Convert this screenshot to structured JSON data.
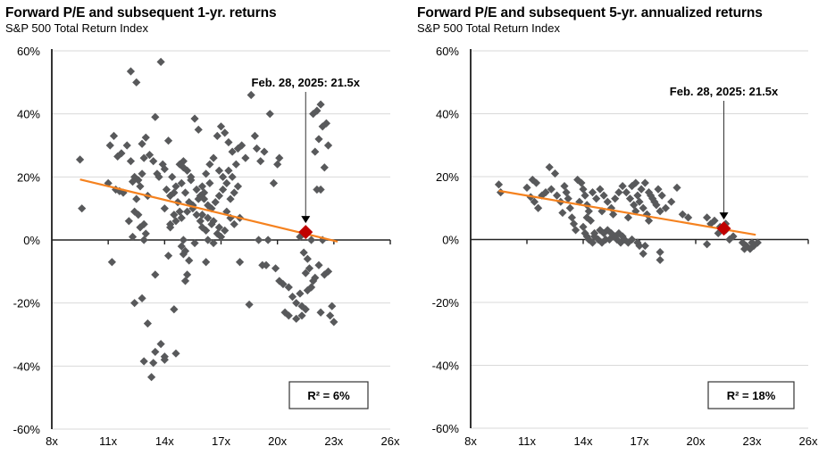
{
  "colors": {
    "point": "#58595b",
    "trend": "#f5821f",
    "current": "#c00000",
    "grid": "#d9d9d9",
    "axis": "#000000"
  },
  "chart_data": [
    {
      "type": "scatter",
      "title": "Forward P/E and subsequent 1-yr. returns",
      "subtitle": "S&P 500 Total Return Index",
      "xlabel": "",
      "ylabel": "",
      "xlim": [
        8,
        26
      ],
      "ylim": [
        -60,
        60
      ],
      "x_ticks": [
        8,
        11,
        14,
        17,
        20,
        23,
        26
      ],
      "x_tick_labels": [
        "8x",
        "11x",
        "14x",
        "17x",
        "20x",
        "23x",
        "26x"
      ],
      "y_ticks": [
        60,
        40,
        20,
        0,
        -20,
        -40,
        -60
      ],
      "y_tick_labels": [
        "60%",
        "40%",
        "20%",
        "0%",
        "-20%",
        "-40%",
        "-60%"
      ],
      "grid": true,
      "annotation": "Feb. 28, 2025:  21.5x",
      "r2_label": "R² = 6%",
      "current": {
        "x": 21.5,
        "y": 2.5
      },
      "trendline": {
        "x": [
          9.5,
          23.2
        ],
        "y": [
          19.2,
          -0.5
        ]
      },
      "points": [
        [
          9.5,
          25.5
        ],
        [
          9.6,
          10
        ],
        [
          11,
          18
        ],
        [
          11.1,
          30
        ],
        [
          11.3,
          33
        ],
        [
          11.5,
          26.5
        ],
        [
          11.4,
          16
        ],
        [
          11.6,
          15.5
        ],
        [
          11.8,
          15
        ],
        [
          11.7,
          27.5
        ],
        [
          11.2,
          -7
        ],
        [
          12.2,
          53.5
        ],
        [
          12.5,
          50
        ],
        [
          12,
          30
        ],
        [
          12.2,
          25
        ],
        [
          12.4,
          20
        ],
        [
          12.3,
          18.5
        ],
        [
          12.6,
          19
        ],
        [
          12.7,
          17
        ],
        [
          12.8,
          30.5
        ],
        [
          12.9,
          26
        ],
        [
          13,
          32.5
        ],
        [
          13.2,
          27
        ],
        [
          12.8,
          21
        ],
        [
          13.1,
          14
        ],
        [
          12.5,
          13
        ],
        [
          12.4,
          9
        ],
        [
          12.6,
          8
        ],
        [
          12.9,
          5
        ],
        [
          12.1,
          6
        ],
        [
          12.3,
          1
        ],
        [
          12.7,
          4
        ],
        [
          13,
          2
        ],
        [
          12.9,
          0
        ],
        [
          12.4,
          -20
        ],
        [
          12.8,
          -18.5
        ],
        [
          13.1,
          -26.5
        ],
        [
          12.9,
          -38.5
        ],
        [
          13.4,
          -39
        ],
        [
          13.3,
          -43.5
        ],
        [
          13.5,
          -35.5
        ],
        [
          13.8,
          -33
        ],
        [
          14,
          -37
        ],
        [
          14,
          -38
        ],
        [
          14.6,
          -36
        ],
        [
          14.5,
          -22
        ],
        [
          13.5,
          -11
        ],
        [
          14.2,
          -5
        ],
        [
          14.9,
          -2
        ],
        [
          15,
          -4.5
        ],
        [
          15.1,
          -3.5
        ],
        [
          15.3,
          -6.5
        ],
        [
          15.2,
          -11
        ],
        [
          15.1,
          -13
        ],
        [
          16.2,
          -7
        ],
        [
          13.5,
          39
        ],
        [
          13.4,
          25
        ],
        [
          13.8,
          56.5
        ],
        [
          13.6,
          21
        ],
        [
          13.9,
          24
        ],
        [
          14,
          22.5
        ],
        [
          13.7,
          20
        ],
        [
          14.1,
          16
        ],
        [
          14.3,
          14
        ],
        [
          14.5,
          15
        ],
        [
          14.7,
          12
        ],
        [
          14.2,
          31.5
        ],
        [
          14.4,
          20
        ],
        [
          14.6,
          17
        ],
        [
          14.9,
          18
        ],
        [
          15,
          25
        ],
        [
          15.2,
          22
        ],
        [
          15.4,
          20
        ],
        [
          15.6,
          38.5
        ],
        [
          15.8,
          35
        ],
        [
          15.1,
          15
        ],
        [
          15.3,
          12
        ],
        [
          15.5,
          10
        ],
        [
          15.7,
          8
        ],
        [
          15.9,
          6
        ],
        [
          16,
          4
        ],
        [
          16.2,
          3
        ],
        [
          16.5,
          5
        ],
        [
          16.8,
          2
        ],
        [
          17,
          1
        ],
        [
          15,
          0
        ],
        [
          15.6,
          -1
        ],
        [
          16.3,
          0
        ],
        [
          16.6,
          -1
        ],
        [
          14.8,
          9
        ],
        [
          14.5,
          8
        ],
        [
          14.3,
          5
        ],
        [
          14,
          10
        ],
        [
          14.8,
          24
        ],
        [
          15,
          23
        ],
        [
          15.4,
          19
        ],
        [
          15.7,
          16
        ],
        [
          15.9,
          14
        ],
        [
          16.1,
          13
        ],
        [
          16.3,
          11
        ],
        [
          16.5,
          10
        ],
        [
          16.7,
          12
        ],
        [
          16.9,
          14
        ],
        [
          17.1,
          16
        ],
        [
          17.3,
          9
        ],
        [
          17.5,
          7
        ],
        [
          17.7,
          5
        ],
        [
          16,
          17
        ],
        [
          16.2,
          21
        ],
        [
          16.4,
          24
        ],
        [
          16.6,
          26
        ],
        [
          16.8,
          33
        ],
        [
          17,
          36
        ],
        [
          17.2,
          34
        ],
        [
          17.4,
          31
        ],
        [
          17.6,
          28
        ],
        [
          17.8,
          24
        ],
        [
          17.3,
          18
        ],
        [
          17.1,
          20
        ],
        [
          16.9,
          22
        ],
        [
          16.4,
          18
        ],
        [
          16.1,
          15
        ],
        [
          15.8,
          13
        ],
        [
          15.5,
          11
        ],
        [
          15.2,
          9
        ],
        [
          14.9,
          7
        ],
        [
          14.6,
          6
        ],
        [
          14.3,
          4
        ],
        [
          16,
          8
        ],
        [
          16.3,
          7
        ],
        [
          16.6,
          6
        ],
        [
          16.9,
          4
        ],
        [
          17.2,
          3
        ],
        [
          17.5,
          13
        ],
        [
          17.7,
          15
        ],
        [
          17.9,
          17
        ],
        [
          18,
          7
        ],
        [
          17.6,
          20
        ],
        [
          17.4,
          22
        ],
        [
          17.9,
          29
        ],
        [
          18.1,
          30
        ],
        [
          18.3,
          26
        ],
        [
          18.6,
          46
        ],
        [
          18.8,
          33
        ],
        [
          18.9,
          29
        ],
        [
          19.1,
          25
        ],
        [
          19.3,
          28
        ],
        [
          19.6,
          40
        ],
        [
          19.8,
          18
        ],
        [
          20,
          24
        ],
        [
          20.1,
          26
        ],
        [
          19.5,
          0
        ],
        [
          18.5,
          -20.5
        ],
        [
          18,
          -7
        ],
        [
          19,
          0
        ],
        [
          19.2,
          -8
        ],
        [
          19.4,
          -8
        ],
        [
          19.9,
          -9
        ],
        [
          20.1,
          -13
        ],
        [
          20.3,
          -14
        ],
        [
          20.4,
          -23
        ],
        [
          20.6,
          -15
        ],
        [
          20.8,
          -18
        ],
        [
          21,
          -20
        ],
        [
          21.2,
          -17
        ],
        [
          21.3,
          -21
        ],
        [
          21.5,
          -22
        ],
        [
          21.6,
          -16
        ],
        [
          21.8,
          -15
        ],
        [
          22,
          -12
        ],
        [
          21.9,
          -13
        ],
        [
          21.7,
          -9
        ],
        [
          21.6,
          -6
        ],
        [
          21.4,
          -4
        ],
        [
          21.5,
          -10.5
        ],
        [
          22.2,
          -8
        ],
        [
          22.5,
          -11
        ],
        [
          22.7,
          -10
        ],
        [
          22.3,
          -23
        ],
        [
          22.8,
          -24
        ],
        [
          22.9,
          -21
        ],
        [
          23,
          -26
        ],
        [
          21.2,
          1
        ],
        [
          21.8,
          0
        ],
        [
          22.4,
          0
        ],
        [
          22.1,
          16
        ],
        [
          22.3,
          16
        ],
        [
          22.5,
          23
        ],
        [
          22.7,
          30
        ],
        [
          22,
          28
        ],
        [
          22.2,
          32
        ],
        [
          22.4,
          36
        ],
        [
          22.6,
          37
        ],
        [
          21.9,
          40
        ],
        [
          22.1,
          41
        ],
        [
          22.3,
          43
        ],
        [
          20.6,
          -24
        ],
        [
          21,
          -25
        ],
        [
          21.3,
          -24
        ]
      ]
    },
    {
      "type": "scatter",
      "title": "Forward P/E and subsequent 5-yr. annualized returns",
      "subtitle": "S&P 500 Total Return Index",
      "xlabel": "",
      "ylabel": "",
      "xlim": [
        8,
        26
      ],
      "ylim": [
        -60,
        60
      ],
      "x_ticks": [
        8,
        11,
        14,
        17,
        20,
        23,
        26
      ],
      "x_tick_labels": [
        "8x",
        "11x",
        "14x",
        "17x",
        "20x",
        "23x",
        "26x"
      ],
      "y_ticks": [
        60,
        40,
        20,
        0,
        -20,
        -40,
        -60
      ],
      "y_tick_labels": [
        "60%",
        "40%",
        "20%",
        "0%",
        "-20%",
        "-40%",
        "-60%"
      ],
      "grid": true,
      "annotation": "Feb. 28, 2025:  21.5x",
      "r2_label": "R² = 18%",
      "current": {
        "x": 21.5,
        "y": 3.5
      },
      "trendline": {
        "x": [
          9.5,
          23.2
        ],
        "y": [
          15.5,
          1.5
        ]
      },
      "points": [
        [
          9.5,
          17.5
        ],
        [
          9.6,
          15
        ],
        [
          11,
          16.5
        ],
        [
          11.3,
          19
        ],
        [
          11.5,
          18
        ],
        [
          11.2,
          13.5
        ],
        [
          11.4,
          12
        ],
        [
          11.6,
          10
        ],
        [
          11.8,
          14
        ],
        [
          12,
          15
        ],
        [
          12.2,
          23
        ],
        [
          12.5,
          21
        ],
        [
          12.3,
          16
        ],
        [
          12.6,
          14
        ],
        [
          12.8,
          12
        ],
        [
          12.9,
          8.5
        ],
        [
          13,
          17
        ],
        [
          13.1,
          15
        ],
        [
          13.2,
          13
        ],
        [
          13.3,
          10
        ],
        [
          13.4,
          7
        ],
        [
          13.5,
          5
        ],
        [
          13.6,
          3
        ],
        [
          13.7,
          19
        ],
        [
          13.9,
          18
        ],
        [
          14,
          16
        ],
        [
          13.8,
          12
        ],
        [
          14.1,
          14
        ],
        [
          14.2,
          11
        ],
        [
          14.3,
          9
        ],
        [
          14.4,
          6
        ],
        [
          14,
          4
        ],
        [
          14.1,
          2
        ],
        [
          14.2,
          1
        ],
        [
          14.3,
          0
        ],
        [
          14.5,
          -1
        ],
        [
          14.6,
          1
        ],
        [
          14.8,
          0
        ],
        [
          15,
          -1
        ],
        [
          15.2,
          0
        ],
        [
          15.4,
          0
        ],
        [
          15.6,
          1
        ],
        [
          15.8,
          0
        ],
        [
          16,
          -1
        ],
        [
          16.2,
          0
        ],
        [
          16.4,
          -1
        ],
        [
          16.6,
          0
        ],
        [
          14.6,
          2
        ],
        [
          14.9,
          3
        ],
        [
          15.1,
          2
        ],
        [
          15.3,
          3
        ],
        [
          15.5,
          2
        ],
        [
          15.7,
          1
        ],
        [
          15.9,
          2
        ],
        [
          16.1,
          1
        ],
        [
          14.5,
          15
        ],
        [
          14.7,
          13
        ],
        [
          14.9,
          16
        ],
        [
          15.1,
          14
        ],
        [
          15.3,
          12
        ],
        [
          15.5,
          10
        ],
        [
          15.7,
          13
        ],
        [
          15.9,
          15
        ],
        [
          16.1,
          17
        ],
        [
          16.3,
          15
        ],
        [
          16.5,
          13
        ],
        [
          16.7,
          11
        ],
        [
          16.9,
          14
        ],
        [
          17.1,
          16
        ],
        [
          17.3,
          18
        ],
        [
          17.5,
          15
        ],
        [
          17.7,
          13
        ],
        [
          17.9,
          11
        ],
        [
          16.6,
          17
        ],
        [
          16.8,
          18
        ],
        [
          17,
          12
        ],
        [
          17.2,
          10
        ],
        [
          17.4,
          8
        ],
        [
          17.6,
          14
        ],
        [
          17.8,
          12
        ],
        [
          18,
          16
        ],
        [
          18.2,
          14
        ],
        [
          18.4,
          10
        ],
        [
          18.7,
          12
        ],
        [
          19,
          16.5
        ],
        [
          19.3,
          8
        ],
        [
          19.6,
          7
        ],
        [
          18.1,
          9
        ],
        [
          17.5,
          6
        ],
        [
          16.8,
          9
        ],
        [
          16.4,
          7
        ],
        [
          15,
          9
        ],
        [
          14.2,
          7
        ],
        [
          15.6,
          8
        ],
        [
          16.9,
          -1
        ],
        [
          17,
          -2
        ],
        [
          17.2,
          -4.5
        ],
        [
          17.3,
          -2
        ],
        [
          18.1,
          -4
        ],
        [
          18.1,
          -6.5
        ],
        [
          20.6,
          7
        ],
        [
          20.8,
          5
        ],
        [
          21,
          6
        ],
        [
          21.3,
          4
        ],
        [
          21.2,
          2
        ],
        [
          21.6,
          3
        ],
        [
          21.8,
          0
        ],
        [
          22,
          1
        ],
        [
          22.5,
          -1
        ],
        [
          22.7,
          -2
        ],
        [
          22.9,
          -3
        ],
        [
          23.1,
          -2
        ],
        [
          23.3,
          -1
        ],
        [
          22.6,
          -3
        ],
        [
          23,
          -1
        ],
        [
          20.6,
          -1.5
        ],
        [
          21.6,
          5
        ]
      ]
    }
  ]
}
